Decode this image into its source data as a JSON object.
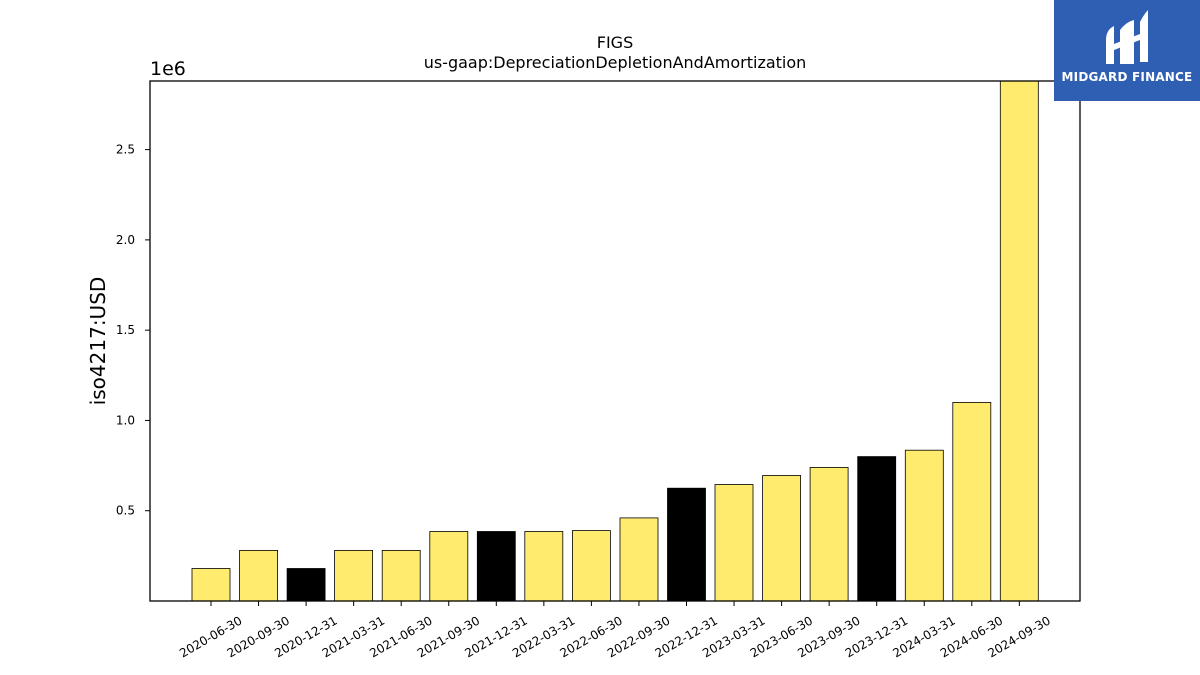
{
  "chart_data": {
    "type": "bar",
    "title": "FIGS",
    "subtitle": "us-gaap:DepreciationDepletionAndAmortization",
    "xlabel": "",
    "ylabel": "iso4217:USD",
    "y_scale_label": "1e6",
    "ylim": [
      0,
      2880000
    ],
    "yticks": [
      {
        "value": 500000,
        "label": "0.5"
      },
      {
        "value": 1000000,
        "label": "1.0"
      },
      {
        "value": 1500000,
        "label": "1.5"
      },
      {
        "value": 2000000,
        "label": "2.0"
      },
      {
        "value": 2500000,
        "label": "2.5"
      }
    ],
    "grid": false,
    "categories": [
      "2020-06-30",
      "2020-09-30",
      "2020-12-31",
      "2021-03-31",
      "2021-06-30",
      "2021-09-30",
      "2021-12-31",
      "2022-03-31",
      "2022-06-30",
      "2022-09-30",
      "2022-12-31",
      "2023-03-31",
      "2023-06-30",
      "2023-09-30",
      "2023-12-31",
      "2024-03-31",
      "2024-06-30",
      "2024-09-30"
    ],
    "values": [
      180000,
      280000,
      180000,
      280000,
      280000,
      385000,
      385000,
      385000,
      390000,
      460000,
      625000,
      645000,
      695000,
      740000,
      800000,
      835000,
      1100000,
      2880000
    ],
    "bar_colors": [
      "#ffec6e",
      "#ffec6e",
      "#000000",
      "#ffec6e",
      "#ffec6e",
      "#ffec6e",
      "#000000",
      "#ffec6e",
      "#ffec6e",
      "#ffec6e",
      "#000000",
      "#ffec6e",
      "#ffec6e",
      "#ffec6e",
      "#000000",
      "#ffec6e",
      "#ffec6e",
      "#ffec6e"
    ]
  },
  "logo": {
    "text": "MIDGARD FINANCE",
    "background": "#2f5fb3"
  }
}
